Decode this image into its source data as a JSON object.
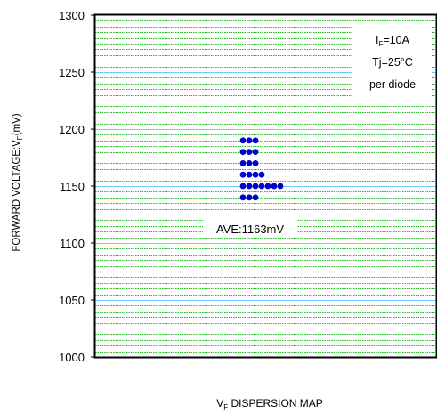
{
  "chart_data": {
    "type": "scatter",
    "title": "",
    "xlabel": {
      "main": "V",
      "sub": "F",
      "rest": " DISPERSION MAP"
    },
    "ylabel": {
      "pre": "FORWARD VOLTAGE:V",
      "sub": "F",
      "post": "(mV)"
    },
    "ylim": [
      1000,
      1300
    ],
    "yticks": [
      1000,
      1050,
      1100,
      1150,
      1200,
      1250,
      1300
    ],
    "yticks_text": [
      "1000",
      "1050",
      "1100",
      "1150",
      "1200",
      "1250",
      "1300"
    ],
    "grid": true,
    "minor_step": 5,
    "series": [
      {
        "values_mV": [
          1140,
          1140,
          1140,
          1150,
          1150,
          1150,
          1150,
          1150,
          1150,
          1150,
          1160,
          1160,
          1160,
          1160,
          1170,
          1170,
          1170,
          1180,
          1180,
          1180,
          1190,
          1190,
          1190
        ],
        "color": "#0000cc"
      }
    ],
    "conditions": [
      {
        "pre": "I",
        "sub": "F",
        "post": "=10A"
      },
      {
        "pre": "Tj=25°C",
        "sub": "",
        "post": ""
      },
      {
        "pre": "per diode",
        "sub": "",
        "post": ""
      }
    ],
    "average": {
      "label": "AVE:1163mV",
      "value": 1163
    },
    "colors": {
      "major_grid": "#66ccff",
      "minor_grid": "#22bb22",
      "marker": "#0000cc",
      "axis": "#000000"
    }
  }
}
